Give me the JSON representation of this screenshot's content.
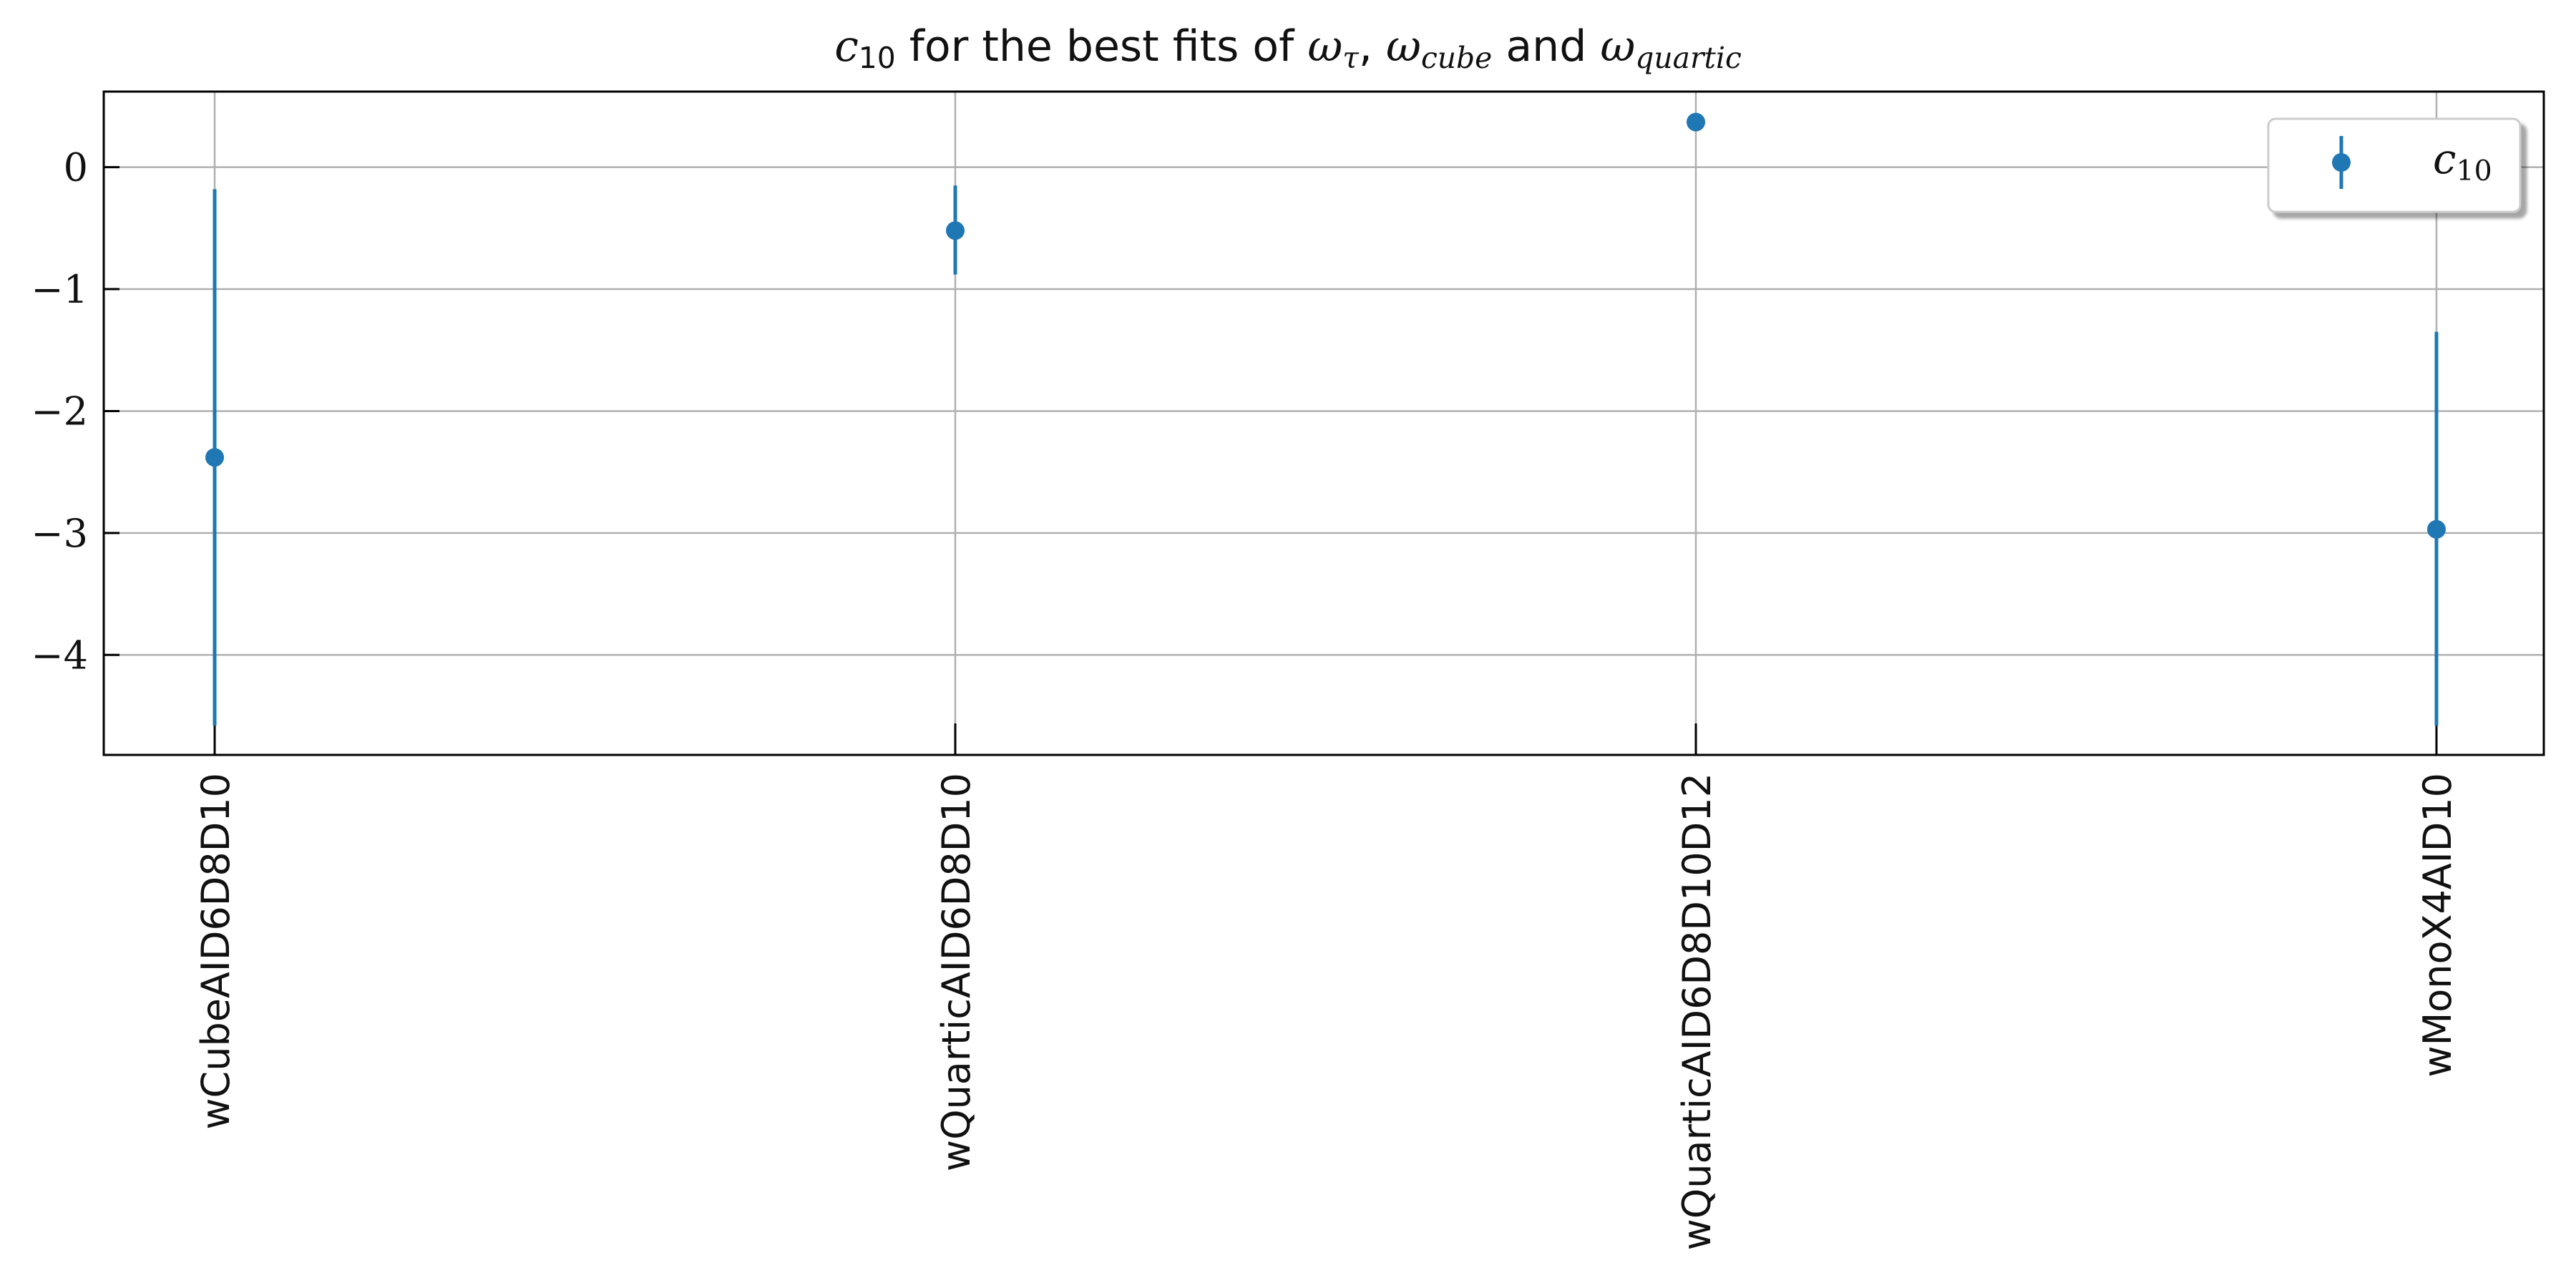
{
  "chart_data": {
    "type": "scatter",
    "title": {
      "pre": "c",
      "pre_sub": "10",
      "mid": " for the best fits of ",
      "w1": "ω",
      "w1_sub": "τ",
      "sep": ", ",
      "w2": "ω",
      "w2_sub": "cube",
      "and": " and ",
      "w3": "ω",
      "w3_sub": "quartic"
    },
    "categories": [
      "wCubeAID6D8D10",
      "wQuarticAID6D8D10",
      "wQuarticAID6D8D10D12",
      "wMonoX4AID10"
    ],
    "series": [
      {
        "name": "c10",
        "values": [
          -2.38,
          -0.52,
          0.37,
          -2.97
        ],
        "err_low": [
          -4.58,
          -0.88,
          null,
          -4.58
        ],
        "err_high": [
          -0.18,
          -0.15,
          null,
          -1.35
        ]
      }
    ],
    "legend": {
      "symbol": "c",
      "sub": "10",
      "placement": "upper right"
    },
    "yticks": [
      "0",
      "−1",
      "−2",
      "−3",
      "−4"
    ],
    "ytick_values": [
      0,
      -1,
      -2,
      -3,
      -4
    ],
    "ylim": [
      -4.82,
      0.62
    ],
    "grid": true,
    "colors": {
      "series": "#1f77b4",
      "grid": "#b0b0b0",
      "axis": "#000000"
    }
  }
}
